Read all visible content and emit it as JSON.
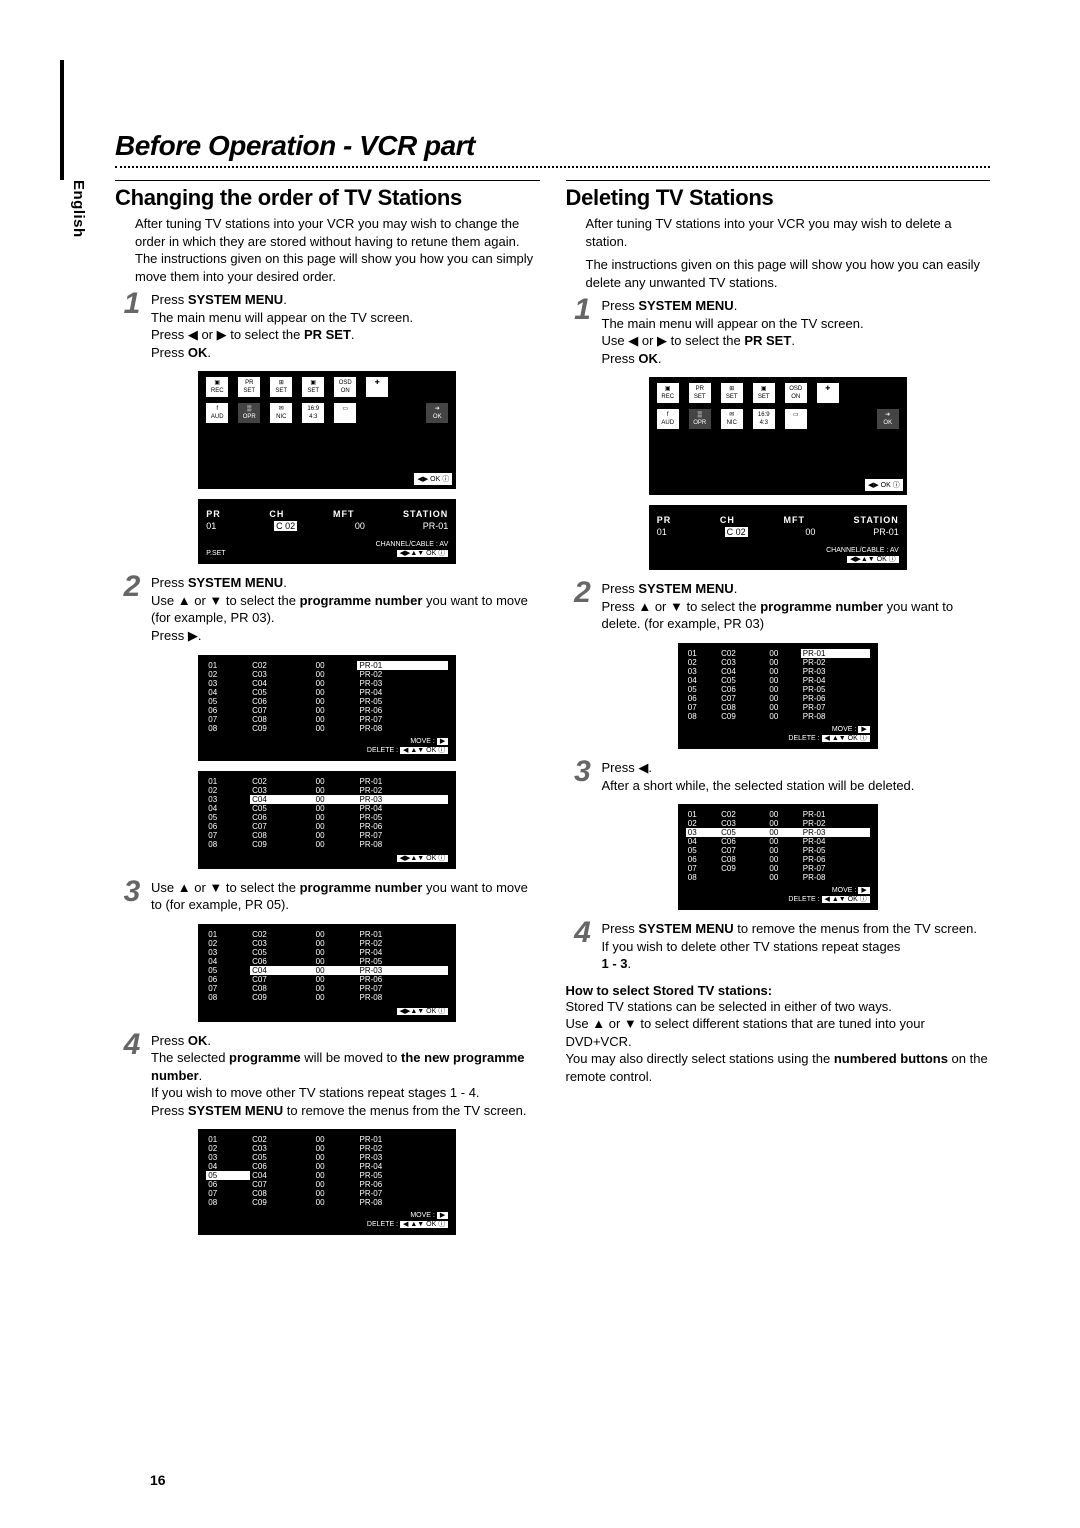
{
  "sideTab": "English",
  "pageTitle": "Before Operation - VCR part",
  "pageNumber": "16",
  "arrows": {
    "l": "◀",
    "r": "▶",
    "u": "▲",
    "d": "▼"
  },
  "list_default": [
    [
      "01",
      "C02",
      "00",
      "PR-01"
    ],
    [
      "02",
      "C03",
      "00",
      "PR-02"
    ],
    [
      "03",
      "C04",
      "00",
      "PR-03"
    ],
    [
      "04",
      "C05",
      "00",
      "PR-04"
    ],
    [
      "05",
      "C06",
      "00",
      "PR-05"
    ],
    [
      "06",
      "C07",
      "00",
      "PR-06"
    ],
    [
      "07",
      "C08",
      "00",
      "PR-07"
    ],
    [
      "08",
      "C09",
      "00",
      "PR-08"
    ]
  ],
  "list_moved": [
    [
      "01",
      "C02",
      "00",
      "PR-01"
    ],
    [
      "02",
      "C03",
      "00",
      "PR-02"
    ],
    [
      "03",
      "C05",
      "00",
      "PR-04"
    ],
    [
      "04",
      "C06",
      "00",
      "PR-05"
    ],
    [
      "05",
      "C04",
      "00",
      "PR-03"
    ],
    [
      "06",
      "C07",
      "00",
      "PR-06"
    ],
    [
      "07",
      "C08",
      "00",
      "PR-07"
    ],
    [
      "08",
      "C09",
      "00",
      "PR-08"
    ]
  ],
  "list_final": [
    [
      "01",
      "C02",
      "00",
      "PR-01"
    ],
    [
      "02",
      "C03",
      "00",
      "PR-02"
    ],
    [
      "03",
      "C05",
      "00",
      "PR-03"
    ],
    [
      "04",
      "C06",
      "00",
      "PR-04"
    ],
    [
      "05",
      "C04",
      "00",
      "PR-05"
    ],
    [
      "06",
      "C07",
      "00",
      "PR-06"
    ],
    [
      "07",
      "C08",
      "00",
      "PR-07"
    ],
    [
      "08",
      "C09",
      "00",
      "PR-08"
    ]
  ],
  "list_del": [
    [
      "01",
      "C02",
      "00",
      "PR-01"
    ],
    [
      "02",
      "C03",
      "00",
      "PR-02"
    ],
    [
      "03",
      "C05",
      "00",
      "PR-03"
    ],
    [
      "04",
      "C06",
      "00",
      "PR-04"
    ],
    [
      "05",
      "C07",
      "00",
      "PR-05"
    ],
    [
      "06",
      "C08",
      "00",
      "PR-06"
    ],
    [
      "07",
      "C09",
      "00",
      "PR-07"
    ],
    [
      "08",
      "",
      "00",
      "PR-08"
    ]
  ],
  "osd_labels": {
    "move": "MOVE :",
    "delete": "DELETE :",
    "ok": "◀▶ OK ⓘ",
    "arrows": "◀▶▲▼ OK ⓘ",
    "pset": "P.SET"
  },
  "prbox": {
    "h1": "PR",
    "h2": "CH",
    "h3": "MFT",
    "h4": "STATION",
    "r1": "01",
    "r2": "C 02",
    "r3": "00",
    "r4": "PR-01",
    "foot": "CHANNEL/CABLE : AV"
  },
  "left": {
    "title": "Changing the order of TV Stations",
    "intro": "After tuning TV stations into your VCR you may wish to change the order in which they are stored without having to retune them again. The instructions given on this page will show you how you can simply move them into your desired order.",
    "s1a": "Press ",
    "s1b": "SYSTEM MENU",
    "s1c": ".",
    "s1d": "The main menu will appear on the TV screen.",
    "s1e": "Press ◀ or ▶ to select the ",
    "s1f": "PR SET",
    "s1g": ".",
    "s1h": "Press ",
    "s1i": "OK",
    "s1j": ".",
    "s2a": "Press ",
    "s2b": "SYSTEM MENU",
    "s2c": ".",
    "s2d": "Use ▲ or ▼ to select the ",
    "s2e": "programme number",
    "s2f": " you want to move (for example, PR 03).",
    "s2g": "Press ▶.",
    "s3a": "Use ▲ or ▼ to select the ",
    "s3b": "programme number",
    "s3c": " you want to move to (for example, PR 05).",
    "s4a": "Press ",
    "s4b": "OK",
    "s4c": ".",
    "s4d": "The selected ",
    "s4e": "programme",
    "s4f": " will be moved to ",
    "s4g": "the new programme number",
    "s4h": ".",
    "s4i": "If you wish to move other TV stations repeat stages 1 - 4.",
    "s4j": "Press ",
    "s4k": "SYSTEM MENU",
    "s4l": " to remove the menus from the TV screen."
  },
  "right": {
    "title": "Deleting TV Stations",
    "intro1": "After tuning TV stations into your VCR you may wish to delete a station.",
    "intro2": "The instructions given on this page will show you how you can easily delete any unwanted TV stations.",
    "s1a": "Press ",
    "s1b": "SYSTEM MENU",
    "s1c": ".",
    "s1d": "The main menu will appear on the TV screen.",
    "s1e": "Use ◀ or ▶ to select the ",
    "s1f": "PR SET",
    "s1g": ".",
    "s1h": "Press ",
    "s1i": "OK",
    "s1j": ".",
    "s2a": "Press ",
    "s2b": "SYSTEM MENU",
    "s2c": ".",
    "s2d": "Press ▲ or ▼ to select the ",
    "s2e": "programme number",
    "s2f": " you want to delete. (for example, PR 03)",
    "s3a": "Press ◀.",
    "s3b": "After a short while, the selected station will be deleted.",
    "s4a": "Press ",
    "s4b": "SYSTEM MENU",
    "s4c": " to remove the menus from the TV screen.",
    "s4d": "If you wish to delete other TV stations repeat stages",
    "s4e": "1 - 3",
    "s4f": ".",
    "howTitle": "How to select Stored TV stations:",
    "how1": "Stored TV stations can be selected in either of two ways.",
    "how2": "Use ▲ or ▼ to select different stations that are tuned into your DVD+VCR.",
    "how3a": "You may also directly select stations using the ",
    "how3b": "numbered buttons",
    "how3c": " on the remote control."
  }
}
